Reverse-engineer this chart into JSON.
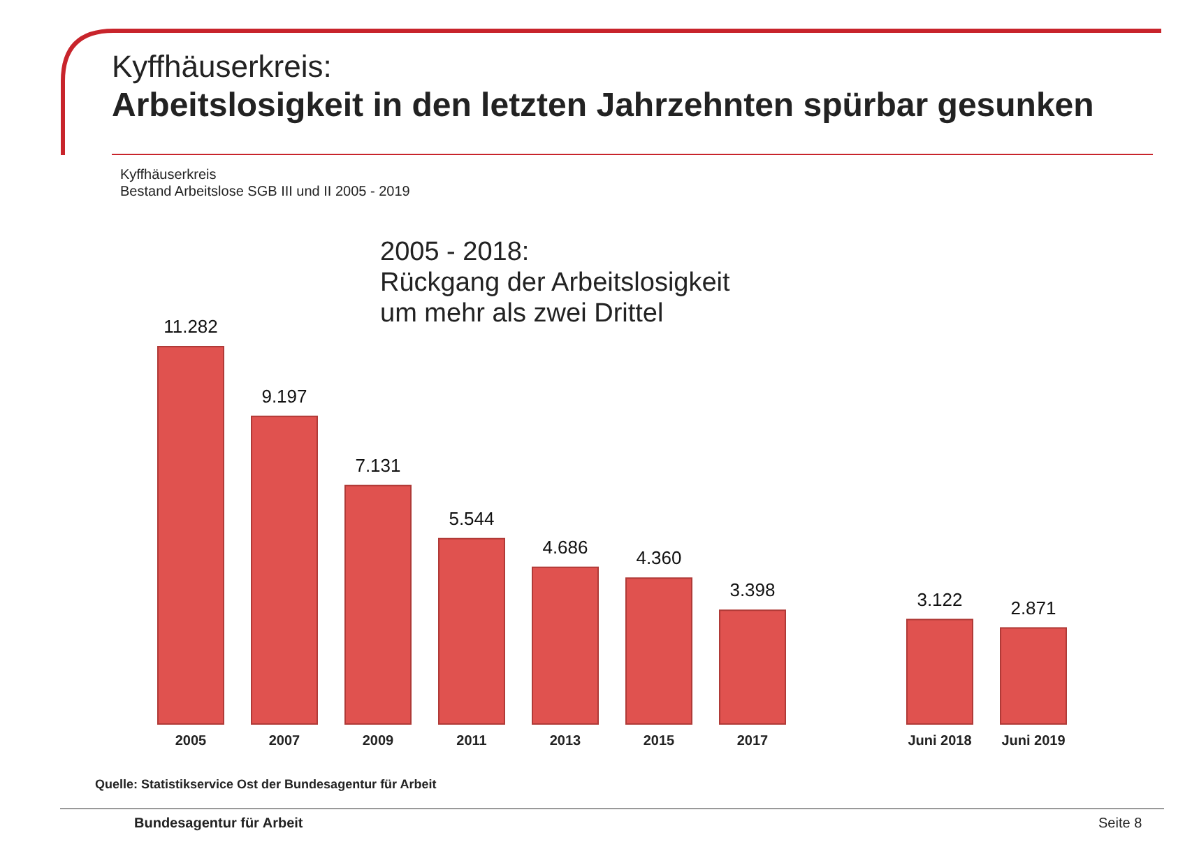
{
  "chart_data": {
    "type": "bar",
    "title": "Kyffhäuserkreis:\nArbeitslosigkeit in den letzten Jahrzehnten spürbar gesunken",
    "subtitle": "Kyffhäuserkreis\nBestand Arbeitslose SGB III und II 2005 - 2019",
    "categories": [
      "2005",
      "2007",
      "2009",
      "2011",
      "2013",
      "2015",
      "2017",
      null,
      "Juni 2018",
      "Juni 2019"
    ],
    "values": [
      11282,
      9197,
      7131,
      5544,
      4686,
      4360,
      3398,
      null,
      3122,
      2871
    ],
    "value_labels": [
      "11.282",
      "9.197",
      "7.131",
      "5.544",
      "4.686",
      "4.360",
      "3.398",
      null,
      "3.122",
      "2.871"
    ],
    "color": "#e0524f",
    "tick_labels": "x",
    "annotations": [
      "2005 - 2018:\nRückgang der Arbeitslosigkeit\num mehr als zwei Drittel",
      "Quelle: Statistikservice Ost der Bundesagentur für Arbeit",
      "Bundesagentur für Arbeit",
      "Seite 8"
    ]
  }
}
